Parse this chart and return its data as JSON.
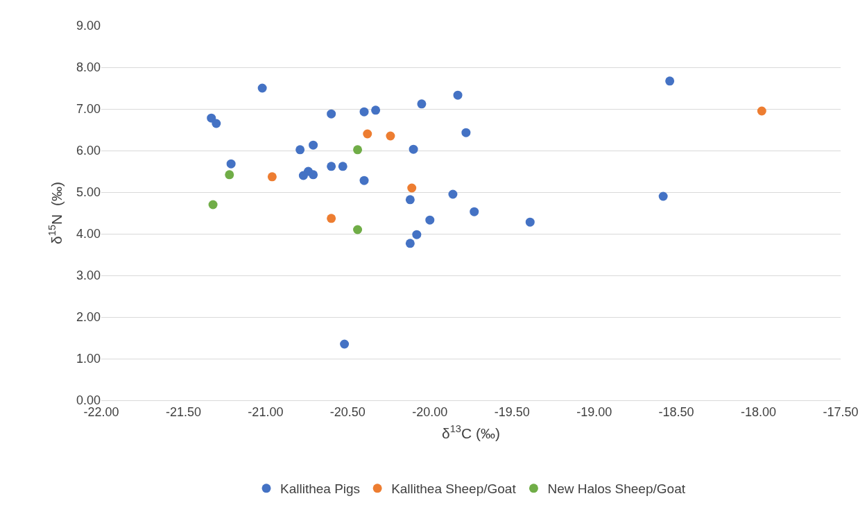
{
  "chart_data": {
    "type": "scatter",
    "xlabel": "δ$^{13}$C (‰)",
    "ylabel": "δ$^{15}$N  (‰)",
    "marker": "circle",
    "grid": "y",
    "legend": "bottom",
    "xlim": [
      -22,
      -17.5
    ],
    "xticks": [
      {
        "value": -22,
        "label": "-22.00"
      },
      {
        "value": -21.5,
        "label": "-21.50"
      },
      {
        "value": -21,
        "label": "-21.00"
      },
      {
        "value": -20.5,
        "label": "-20.50"
      },
      {
        "value": -20,
        "label": "-20.00"
      },
      {
        "value": -19.5,
        "label": "-19.50"
      },
      {
        "value": -19,
        "label": "-19.00"
      },
      {
        "value": -18.5,
        "label": "-18.50"
      },
      {
        "value": -18,
        "label": "-18.00"
      },
      {
        "value": -17.5,
        "label": "-17.50"
      }
    ],
    "ylim": [
      0,
      9
    ],
    "yticks": [
      {
        "value": 0,
        "label": "0.00"
      },
      {
        "value": 1,
        "label": "1.00"
      },
      {
        "value": 2,
        "label": "2.00"
      },
      {
        "value": 3,
        "label": "3.00"
      },
      {
        "value": 4,
        "label": "4.00"
      },
      {
        "value": 5,
        "label": "5.00"
      },
      {
        "value": 6,
        "label": "6.00"
      },
      {
        "value": 7,
        "label": "7.00"
      },
      {
        "value": 8,
        "label": "8.00"
      },
      {
        "value": 9,
        "label": "9.00"
      }
    ],
    "series": [
      {
        "name": "Kallithea Pigs",
        "color": "#4472c4",
        "x": [
          -21.33,
          -21.3,
          -21.02,
          -21.21,
          -20.79,
          -20.71,
          -20.74,
          -20.77,
          -20.71,
          -20.6,
          -20.6,
          -20.53,
          -20.4,
          -20.33,
          -20.4,
          -20.52,
          -20.05,
          -20.1,
          -20.12,
          -20.08,
          -20.12,
          -20.0,
          -19.83,
          -19.78,
          -19.86,
          -19.73,
          -19.39,
          -18.58,
          -18.54
        ],
        "values": [
          6.78,
          6.65,
          7.5,
          5.68,
          6.02,
          6.13,
          5.5,
          5.4,
          5.42,
          6.88,
          5.62,
          5.62,
          6.93,
          6.97,
          5.28,
          1.35,
          7.12,
          6.03,
          4.82,
          3.98,
          3.77,
          4.33,
          7.33,
          6.43,
          4.95,
          4.53,
          4.28,
          4.9,
          7.67
        ]
      },
      {
        "name": "Kallithea Sheep/Goat",
        "color": "#ed7d31",
        "x": [
          -20.38,
          -20.24,
          -20.96,
          -20.11,
          -20.6,
          -17.98
        ],
        "values": [
          6.4,
          6.35,
          5.37,
          5.1,
          4.37,
          6.95
        ]
      },
      {
        "name": "New Halos Sheep/Goat",
        "color": "#70ad47",
        "x": [
          -20.44,
          -21.22,
          -21.32,
          -20.44
        ],
        "values": [
          6.02,
          5.42,
          4.7,
          4.1
        ]
      }
    ]
  }
}
